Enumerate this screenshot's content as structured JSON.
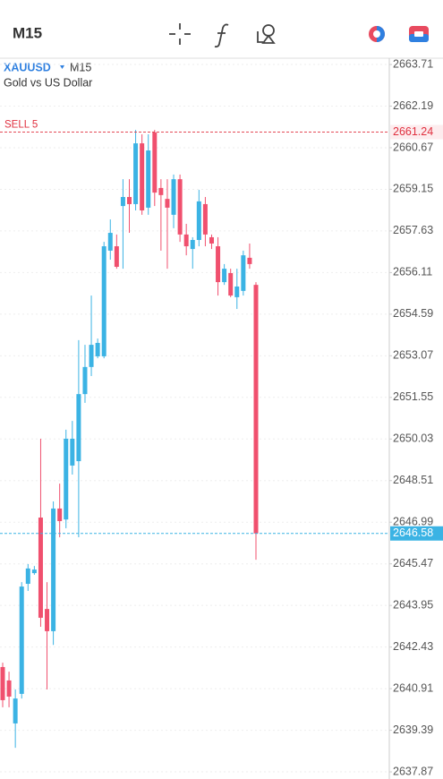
{
  "toolbar": {
    "timeframe": "M15"
  },
  "chart_data": {
    "type": "candlestick",
    "symbol": "XAUUSD",
    "timeframe": "M15",
    "description": "Gold vs US Dollar",
    "up_color": "#3bb3e4",
    "down_color": "#f0506e",
    "grid": true,
    "ylim": [
      2637.61,
      2663.94
    ],
    "yticks": [
      2663.71,
      2662.19,
      2660.67,
      2659.15,
      2657.63,
      2656.11,
      2654.59,
      2653.07,
      2651.55,
      2650.03,
      2648.51,
      2646.99,
      2645.47,
      2643.95,
      2642.43,
      2640.91,
      2639.39,
      2637.87
    ],
    "open": [
      2641.7,
      2641.21,
      2639.64,
      2640.72,
      2644.74,
      2645.13,
      2647.16,
      2643.82,
      2643.01,
      2647.49,
      2647.09,
      2649.06,
      2649.22,
      2651.67,
      2652.66,
      2653.05,
      2653.05,
      2656.91,
      2657.07,
      2658.54,
      2658.87,
      2658.61,
      2660.83,
      2658.48,
      2661.23,
      2659.2,
      2658.8,
      2658.22,
      2659.52,
      2657.5,
      2656.97,
      2657.3,
      2658.61,
      2657.4,
      2657.07,
      2655.76,
      2656.09,
      2655.21,
      2655.44,
      2656.65,
      2655.66
    ],
    "high": [
      2641.86,
      2641.53,
      2640.88,
      2644.8,
      2645.46,
      2645.39,
      2650.04,
      2644.8,
      2647.75,
      2648.4,
      2650.37,
      2650.69,
      2653.64,
      2653.47,
      2655.27,
      2653.7,
      2657.23,
      2658.05,
      2657.5,
      2659.52,
      2659.52,
      2661.32,
      2661.16,
      2661.16,
      2661.32,
      2659.52,
      2659.52,
      2659.69,
      2659.69,
      2657.89,
      2657.4,
      2659.13,
      2658.87,
      2657.5,
      2657.4,
      2656.42,
      2656.25,
      2656.25,
      2656.91,
      2657.17,
      2655.76
    ],
    "low": [
      2640.23,
      2640.23,
      2638.75,
      2640.55,
      2644.48,
      2645.07,
      2643.17,
      2640.88,
      2642.51,
      2646.44,
      2646.77,
      2648.73,
      2646.44,
      2651.35,
      2652.33,
      2652.98,
      2652.98,
      2656.58,
      2656.25,
      2656.25,
      2657.56,
      2658.38,
      2658.22,
      2658.22,
      2658.54,
      2656.91,
      2656.25,
      2657.73,
      2657.23,
      2656.74,
      2656.25,
      2657.07,
      2657.07,
      2656.97,
      2655.27,
      2655.66,
      2655.21,
      2654.78,
      2655.27,
      2656.25,
      2645.62
    ],
    "close": [
      2640.49,
      2640.62,
      2640.55,
      2644.64,
      2645.3,
      2645.26,
      2643.5,
      2643.01,
      2647.49,
      2647.03,
      2650.04,
      2650.04,
      2651.67,
      2652.66,
      2653.47,
      2653.54,
      2657.07,
      2657.56,
      2656.32,
      2658.87,
      2658.61,
      2660.83,
      2658.38,
      2660.57,
      2659.03,
      2658.94,
      2658.48,
      2659.52,
      2657.5,
      2657.07,
      2657.3,
      2658.71,
      2657.5,
      2657.17,
      2655.76,
      2656.25,
      2655.27,
      2655.6,
      2656.74,
      2656.42,
      2646.58
    ],
    "sell_order": {
      "label": "SELL 5",
      "price": 2661.24,
      "color": "#e0303f"
    },
    "current_price": 2646.58,
    "current_color": "#3bb3e4"
  }
}
